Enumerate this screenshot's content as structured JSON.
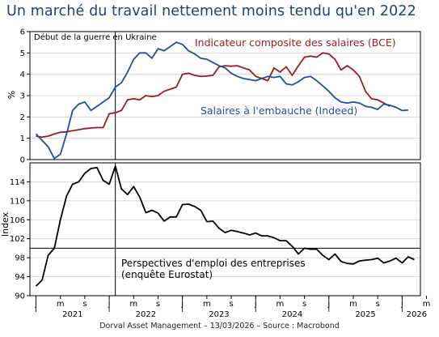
{
  "title": "Un marché du travail nettement moins tendu qu'en 2022",
  "footer": "Dorval Asset Management – 13/03/2026 –   Source : Macrobond",
  "colors": {
    "red": "#9b1b1b",
    "blue": "#1f4fa0",
    "black": "#000000",
    "title": "#1f3f7a"
  },
  "chart_data": [
    {
      "type": "line",
      "annotation": "Début de la guerre en Ukraine",
      "ylabel": "%",
      "ylim": [
        0,
        6
      ],
      "yticks": [
        0,
        1,
        2,
        3,
        4,
        5,
        6
      ],
      "x_range": [
        "2020-12",
        "2026-04"
      ],
      "x_tick_labels": [
        "j",
        "m",
        "s",
        "j",
        "m",
        "s",
        "j",
        "m",
        "s",
        "j",
        "m",
        "s",
        "j",
        "m",
        "s",
        "j",
        "m"
      ],
      "year_labels": [
        "2021",
        "2022",
        "2023",
        "2024",
        "2025",
        "2026"
      ],
      "series": [
        {
          "name": "Indicateur composite des salaires (BCE)",
          "color": "#9b1b1b",
          "points": [
            [
              "2021-01",
              1.1
            ],
            [
              "2021-02",
              1.05
            ],
            [
              "2021-03",
              1.1
            ],
            [
              "2021-04",
              1.2
            ],
            [
              "2021-05",
              1.28
            ],
            [
              "2021-06",
              1.3
            ],
            [
              "2021-07",
              1.35
            ],
            [
              "2021-08",
              1.4
            ],
            [
              "2021-09",
              1.45
            ],
            [
              "2021-10",
              1.48
            ],
            [
              "2021-11",
              1.5
            ],
            [
              "2021-12",
              1.5
            ],
            [
              "2022-01",
              2.15
            ],
            [
              "2022-02",
              2.2
            ],
            [
              "2022-03",
              2.3
            ],
            [
              "2022-04",
              2.8
            ],
            [
              "2022-05",
              2.85
            ],
            [
              "2022-06",
              2.8
            ],
            [
              "2022-07",
              3.0
            ],
            [
              "2022-08",
              2.95
            ],
            [
              "2022-09",
              3.0
            ],
            [
              "2022-10",
              3.2
            ],
            [
              "2022-11",
              3.3
            ],
            [
              "2022-12",
              3.4
            ],
            [
              "2023-01",
              4.0
            ],
            [
              "2023-02",
              4.05
            ],
            [
              "2023-03",
              3.95
            ],
            [
              "2023-04",
              3.9
            ],
            [
              "2023-05",
              3.92
            ],
            [
              "2023-06",
              3.95
            ],
            [
              "2023-07",
              4.35
            ],
            [
              "2023-08",
              4.4
            ],
            [
              "2023-09",
              4.38
            ],
            [
              "2023-10",
              4.4
            ],
            [
              "2023-11",
              4.3
            ],
            [
              "2023-12",
              4.2
            ],
            [
              "2024-01",
              3.9
            ],
            [
              "2024-02",
              3.8
            ],
            [
              "2024-03",
              3.7
            ],
            [
              "2024-04",
              4.3
            ],
            [
              "2024-05",
              4.1
            ],
            [
              "2024-06",
              4.35
            ],
            [
              "2024-07",
              3.95
            ],
            [
              "2024-08",
              4.4
            ],
            [
              "2024-09",
              4.8
            ],
            [
              "2024-10",
              4.85
            ],
            [
              "2024-11",
              4.8
            ],
            [
              "2024-12",
              5.0
            ],
            [
              "2025-01",
              4.95
            ],
            [
              "2025-02",
              4.7
            ],
            [
              "2025-03",
              4.2
            ],
            [
              "2025-04",
              4.4
            ],
            [
              "2025-05",
              4.2
            ],
            [
              "2025-06",
              3.9
            ],
            [
              "2025-07",
              3.2
            ],
            [
              "2025-08",
              2.85
            ],
            [
              "2025-09",
              2.8
            ],
            [
              "2025-10",
              2.65
            ],
            [
              "2025-11",
              2.5
            ]
          ]
        },
        {
          "name": "Salaires à l'embauche (Indeed)",
          "color": "#1f4fa0",
          "points": [
            [
              "2021-01",
              1.2
            ],
            [
              "2021-02",
              0.9
            ],
            [
              "2021-03",
              0.6
            ],
            [
              "2021-04",
              0.05
            ],
            [
              "2021-05",
              0.25
            ],
            [
              "2021-06",
              1.2
            ],
            [
              "2021-07",
              2.3
            ],
            [
              "2021-08",
              2.6
            ],
            [
              "2021-09",
              2.7
            ],
            [
              "2021-10",
              2.3
            ],
            [
              "2021-11",
              2.5
            ],
            [
              "2021-12",
              2.7
            ],
            [
              "2022-01",
              2.9
            ],
            [
              "2022-02",
              3.4
            ],
            [
              "2022-03",
              3.6
            ],
            [
              "2022-04",
              4.1
            ],
            [
              "2022-05",
              4.7
            ],
            [
              "2022-06",
              5.0
            ],
            [
              "2022-07",
              5.0
            ],
            [
              "2022-08",
              4.75
            ],
            [
              "2022-09",
              5.2
            ],
            [
              "2022-10",
              5.1
            ],
            [
              "2022-11",
              5.3
            ],
            [
              "2022-12",
              5.5
            ],
            [
              "2023-01",
              5.4
            ],
            [
              "2023-02",
              5.1
            ],
            [
              "2023-03",
              4.95
            ],
            [
              "2023-04",
              4.75
            ],
            [
              "2023-05",
              4.7
            ],
            [
              "2023-06",
              4.55
            ],
            [
              "2023-07",
              4.4
            ],
            [
              "2023-08",
              4.3
            ],
            [
              "2023-09",
              4.05
            ],
            [
              "2023-10",
              3.9
            ],
            [
              "2023-11",
              3.8
            ],
            [
              "2023-12",
              3.75
            ],
            [
              "2024-01",
              3.7
            ],
            [
              "2024-02",
              3.8
            ],
            [
              "2024-03",
              3.9
            ],
            [
              "2024-04",
              3.85
            ],
            [
              "2024-05",
              3.9
            ],
            [
              "2024-06",
              3.55
            ],
            [
              "2024-07",
              3.5
            ],
            [
              "2024-08",
              3.65
            ],
            [
              "2024-09",
              3.85
            ],
            [
              "2024-10",
              3.9
            ],
            [
              "2024-11",
              3.7
            ],
            [
              "2024-12",
              3.45
            ],
            [
              "2025-01",
              3.2
            ],
            [
              "2025-02",
              2.9
            ],
            [
              "2025-03",
              2.7
            ],
            [
              "2025-04",
              2.65
            ],
            [
              "2025-05",
              2.7
            ],
            [
              "2025-06",
              2.65
            ],
            [
              "2025-07",
              2.5
            ],
            [
              "2025-08",
              2.45
            ],
            [
              "2025-09",
              2.35
            ],
            [
              "2025-10",
              2.6
            ],
            [
              "2025-11",
              2.55
            ],
            [
              "2025-12",
              2.45
            ],
            [
              "2026-01",
              2.3
            ],
            [
              "2026-02",
              2.32
            ]
          ]
        }
      ]
    },
    {
      "type": "line",
      "annotation": "Perspectives d'emploi des entreprises (enquête Eurostat)",
      "ylabel": "Index",
      "ylim": [
        90,
        118
      ],
      "yticks": [
        90,
        94,
        98,
        102,
        106,
        110,
        114
      ],
      "reference_line": 100,
      "x_range": [
        "2020-12",
        "2026-04"
      ],
      "x_tick_labels": [
        "j",
        "m",
        "s",
        "j",
        "m",
        "s",
        "j",
        "m",
        "s",
        "j",
        "m",
        "s",
        "j",
        "m",
        "s",
        "j",
        "m"
      ],
      "year_labels": [
        "2021",
        "2022",
        "2023",
        "2024",
        "2025",
        "2026"
      ],
      "series": [
        {
          "name": "Perspectives d'emploi des entreprises",
          "color": "#000000",
          "points": [
            [
              "2021-01",
              92.0
            ],
            [
              "2021-02",
              93.3
            ],
            [
              "2021-03",
              98.5
            ],
            [
              "2021-04",
              100.0
            ],
            [
              "2021-05",
              106.0
            ],
            [
              "2021-06",
              111.0
            ],
            [
              "2021-07",
              113.5
            ],
            [
              "2021-08",
              114.0
            ],
            [
              "2021-09",
              115.8
            ],
            [
              "2021-10",
              116.8
            ],
            [
              "2021-11",
              117.0
            ],
            [
              "2021-12",
              114.3
            ],
            [
              "2022-01",
              113.5
            ],
            [
              "2022-02",
              117.3
            ],
            [
              "2022-03",
              112.5
            ],
            [
              "2022-04",
              111.3
            ],
            [
              "2022-05",
              113.0
            ],
            [
              "2022-06",
              110.8
            ],
            [
              "2022-07",
              107.5
            ],
            [
              "2022-08",
              108.0
            ],
            [
              "2022-09",
              107.4
            ],
            [
              "2022-10",
              105.7
            ],
            [
              "2022-11",
              106.6
            ],
            [
              "2022-12",
              106.6
            ],
            [
              "2023-01",
              109.2
            ],
            [
              "2023-02",
              109.3
            ],
            [
              "2023-03",
              108.8
            ],
            [
              "2023-04",
              108.0
            ],
            [
              "2023-05",
              105.6
            ],
            [
              "2023-06",
              105.7
            ],
            [
              "2023-07",
              104.2
            ],
            [
              "2023-08",
              103.3
            ],
            [
              "2023-09",
              103.8
            ],
            [
              "2023-10",
              103.5
            ],
            [
              "2023-11",
              103.2
            ],
            [
              "2023-12",
              102.8
            ],
            [
              "2024-01",
              103.2
            ],
            [
              "2024-02",
              102.6
            ],
            [
              "2024-03",
              102.6
            ],
            [
              "2024-04",
              102.2
            ],
            [
              "2024-05",
              101.6
            ],
            [
              "2024-06",
              101.6
            ],
            [
              "2024-07",
              100.4
            ],
            [
              "2024-08",
              98.8
            ],
            [
              "2024-09",
              100.0
            ],
            [
              "2024-10",
              99.8
            ],
            [
              "2024-11",
              99.8
            ],
            [
              "2024-12",
              98.5
            ],
            [
              "2025-01",
              97.6
            ],
            [
              "2025-02",
              98.8
            ],
            [
              "2025-03",
              97.2
            ],
            [
              "2025-04",
              96.8
            ],
            [
              "2025-05",
              96.7
            ],
            [
              "2025-06",
              97.3
            ],
            [
              "2025-07",
              97.5
            ],
            [
              "2025-08",
              97.6
            ],
            [
              "2025-09",
              97.9
            ],
            [
              "2025-10",
              96.9
            ],
            [
              "2025-11",
              97.3
            ],
            [
              "2025-12",
              97.9
            ],
            [
              "2026-01",
              96.9
            ],
            [
              "2026-02",
              98.2
            ],
            [
              "2026-03",
              97.6
            ]
          ]
        }
      ]
    }
  ]
}
